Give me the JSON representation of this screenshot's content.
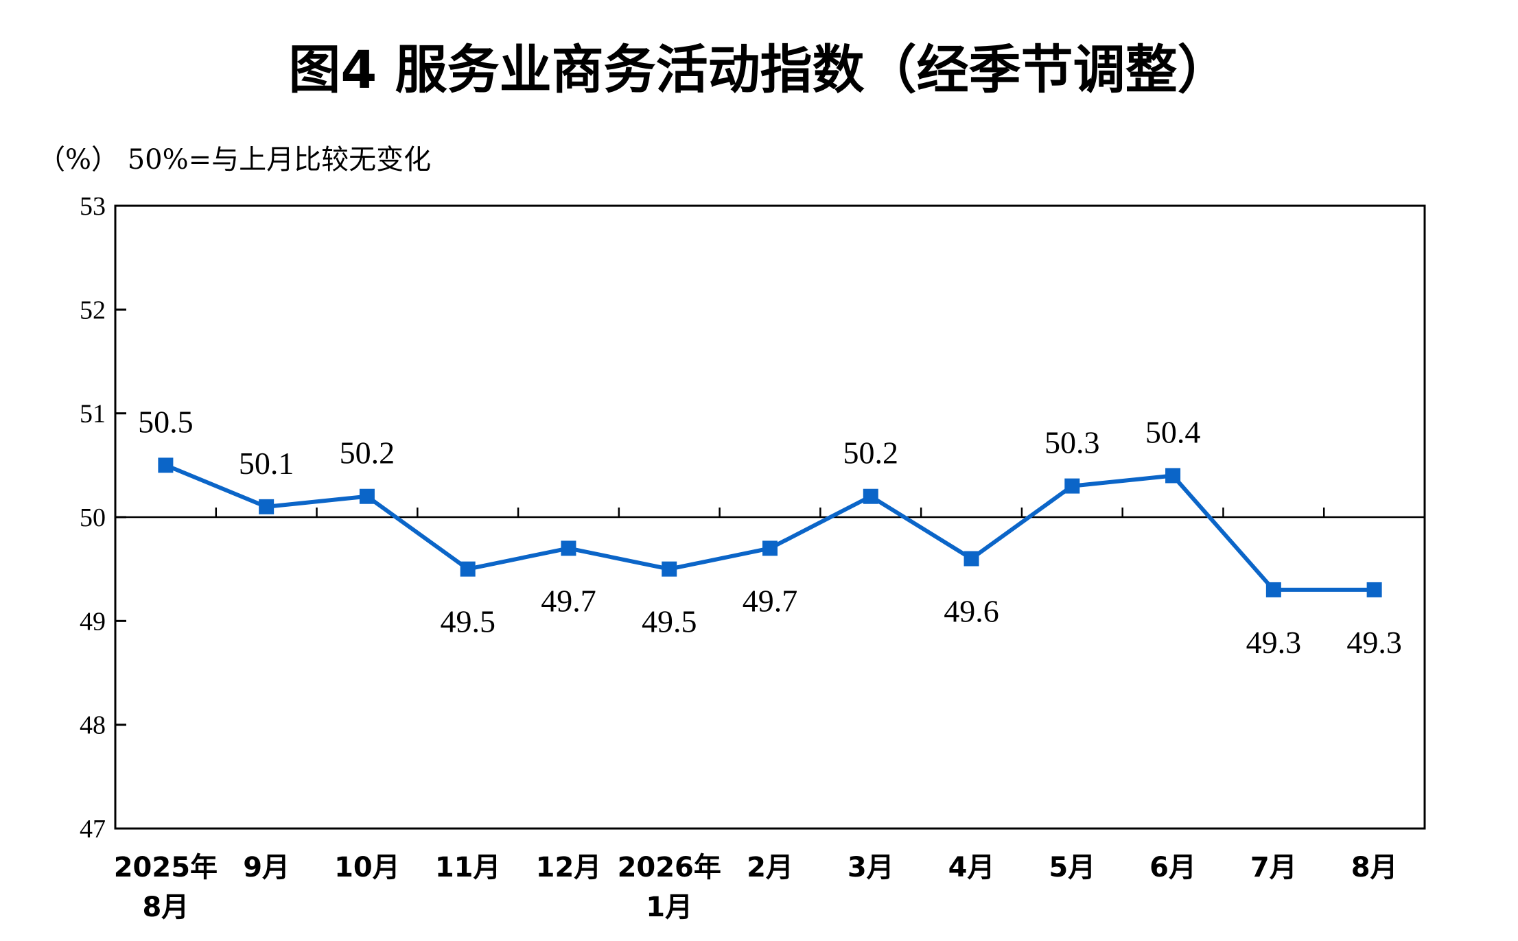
{
  "chart_data": {
    "type": "line",
    "title": "图4  服务业商务活动指数（经季节调整）",
    "unit_note": "（%） 50%=与上月比较无变化",
    "categories": [
      [
        "2025年",
        "8月"
      ],
      [
        "9月"
      ],
      [
        "10月"
      ],
      [
        "11月"
      ],
      [
        "12月"
      ],
      [
        "2026年",
        "1月"
      ],
      [
        "2月"
      ],
      [
        "3月"
      ],
      [
        "4月"
      ],
      [
        "5月"
      ],
      [
        "6月"
      ],
      [
        "7月"
      ],
      [
        "8月"
      ]
    ],
    "values": [
      50.5,
      50.1,
      50.2,
      49.5,
      49.7,
      49.5,
      49.7,
      50.2,
      49.6,
      50.3,
      50.4,
      49.3,
      49.3
    ],
    "label_position": [
      "above",
      "above",
      "above",
      "below",
      "below",
      "below",
      "below",
      "above",
      "below",
      "above",
      "above",
      "below",
      "below"
    ],
    "ylim": [
      47,
      53
    ],
    "yticks": [
      47,
      48,
      49,
      50,
      51,
      52,
      53
    ],
    "reference_line": 50,
    "xlabel": "",
    "ylabel": "",
    "line_color": "#0b65c8",
    "axis_color": "#000000"
  }
}
